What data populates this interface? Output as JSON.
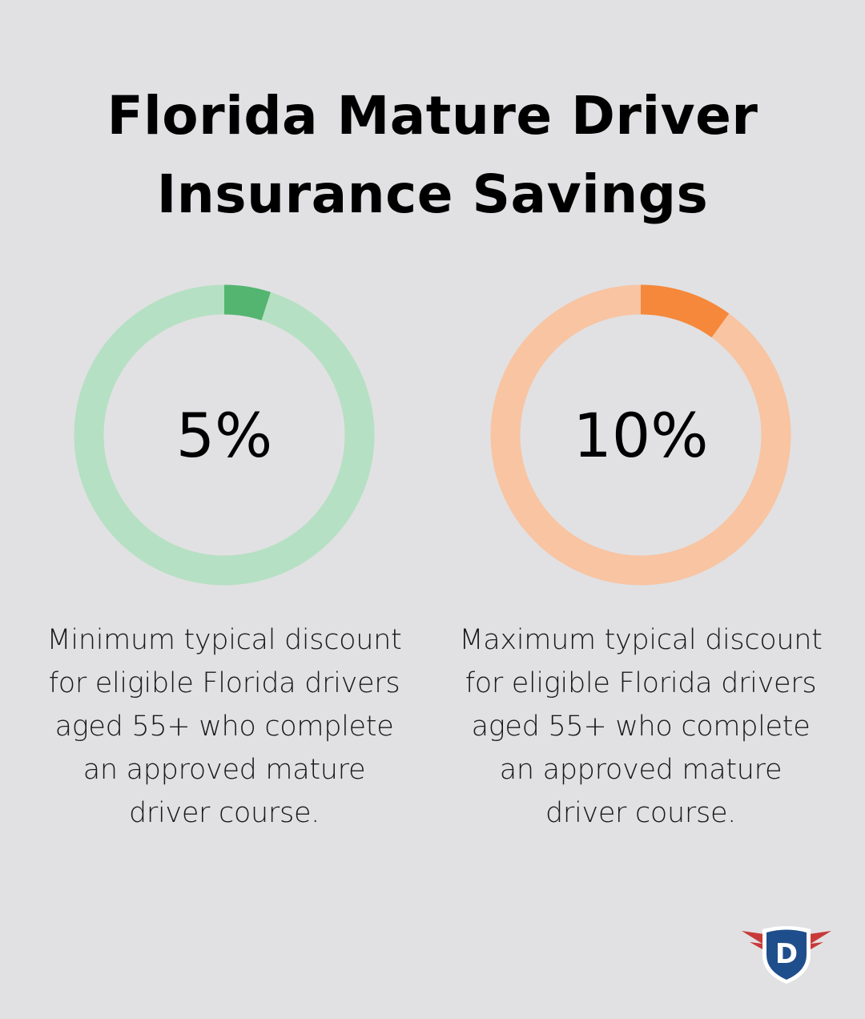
{
  "title_line1": "Florida Mature Driver",
  "title_line2": "Insurance Savings",
  "chart_data": [
    {
      "type": "pie",
      "value": 5,
      "label": "5%",
      "description": "Minimum typical discount for eligible Florida drivers aged 55+ who complete an approved mature driver course.",
      "colors": {
        "fill": "#54b570",
        "track": "#b6e0c3"
      }
    },
    {
      "type": "pie",
      "value": 10,
      "label": "10%",
      "description": "Maximum typical discount for eligible Florida drivers aged 55+ who complete an approved mature driver course.",
      "colors": {
        "fill": "#f5883b",
        "track": "#f8c4a2"
      }
    }
  ],
  "logo": {
    "letter": "D",
    "colors": {
      "shield": "#1f4e8c",
      "wings": "#c83a3a"
    }
  }
}
